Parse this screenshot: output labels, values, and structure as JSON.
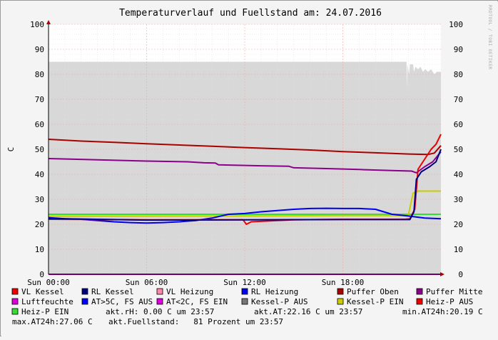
{
  "chart_data": {
    "type": "line",
    "title": "Temperaturverlauf und Fuellstand am: 24.07.2016",
    "ylabel": "C",
    "watermark": "RRDTOOL / TOBI OETIKER",
    "xlim": [
      0,
      24
    ],
    "ylim": [
      0,
      100
    ],
    "x_ticks": [
      {
        "x": 0,
        "label": "Sun 00:00"
      },
      {
        "x": 6,
        "label": "Sun 06:00"
      },
      {
        "x": 12,
        "label": "Sun 12:00"
      },
      {
        "x": 18,
        "label": "Sun 18:00"
      }
    ],
    "y_ticks": [
      0,
      10,
      20,
      30,
      40,
      50,
      60,
      70,
      80,
      90,
      100
    ],
    "grid": true,
    "fill_area": {
      "name": "Fuellstand",
      "color": "#d8d8d8",
      "points": [
        [
          0,
          85
        ],
        [
          21.9,
          85
        ],
        [
          21.92,
          74
        ],
        [
          21.95,
          84
        ],
        [
          22.05,
          80
        ],
        [
          22.1,
          84
        ],
        [
          22.3,
          84
        ],
        [
          22.35,
          81
        ],
        [
          22.45,
          83
        ],
        [
          22.6,
          82
        ],
        [
          22.75,
          83
        ],
        [
          22.9,
          81
        ],
        [
          23.05,
          82
        ],
        [
          23.2,
          81
        ],
        [
          23.4,
          82
        ],
        [
          23.6,
          80
        ],
        [
          23.75,
          81
        ],
        [
          24,
          81
        ]
      ]
    },
    "series": [
      {
        "name": "Puffer Oben",
        "color": "#aa0000",
        "points": [
          [
            0,
            54
          ],
          [
            2,
            53.3
          ],
          [
            4,
            52.8
          ],
          [
            6,
            52.2
          ],
          [
            8,
            51.7
          ],
          [
            10,
            51.2
          ],
          [
            12,
            50.7
          ],
          [
            14,
            50.2
          ],
          [
            16,
            49.7
          ],
          [
            18,
            49.1
          ],
          [
            20,
            48.6
          ],
          [
            22,
            48.1
          ],
          [
            23.2,
            47.9
          ],
          [
            23.6,
            48.5
          ],
          [
            24,
            51.5
          ]
        ]
      },
      {
        "name": "Puffer Mitte",
        "color": "#8b008b",
        "points": [
          [
            0,
            46.3
          ],
          [
            3,
            45.8
          ],
          [
            6,
            45.3
          ],
          [
            8.5,
            45.0
          ],
          [
            9.5,
            44.6
          ],
          [
            10.2,
            44.5
          ],
          [
            10.4,
            43.8
          ],
          [
            13,
            43.4
          ],
          [
            14.7,
            43.2
          ],
          [
            15,
            42.6
          ],
          [
            17,
            42.3
          ],
          [
            19,
            41.9
          ],
          [
            21,
            41.5
          ],
          [
            22.2,
            41.3
          ],
          [
            22.5,
            40.6
          ],
          [
            23,
            43
          ],
          [
            23.5,
            45
          ],
          [
            24,
            49
          ]
        ]
      },
      {
        "name": "Heiz-P EIN",
        "color": "#33dd33",
        "points": [
          [
            0,
            24
          ],
          [
            6,
            24
          ],
          [
            12,
            24
          ],
          [
            18,
            24
          ],
          [
            22.3,
            24
          ],
          [
            24,
            24
          ]
        ]
      },
      {
        "name": "Kessel-P EIN",
        "color": "#cccc00",
        "points": [
          [
            0,
            23.2
          ],
          [
            12,
            23.3
          ],
          [
            18,
            23.5
          ],
          [
            22.0,
            23.5
          ],
          [
            22.3,
            32.5
          ],
          [
            22.6,
            33.3
          ],
          [
            24,
            33.3
          ]
        ]
      },
      {
        "name": "RL Heizung",
        "color": "#0000ee",
        "points": [
          [
            0,
            22.7
          ],
          [
            1,
            22.2
          ],
          [
            2,
            22
          ],
          [
            3,
            21.5
          ],
          [
            4,
            21
          ],
          [
            5,
            20.7
          ],
          [
            6,
            20.5
          ],
          [
            7,
            20.7
          ],
          [
            8,
            21
          ],
          [
            9,
            21.5
          ],
          [
            10,
            22.5
          ],
          [
            11,
            24
          ],
          [
            12,
            24.3
          ],
          [
            13,
            25
          ],
          [
            14,
            25.5
          ],
          [
            15,
            26
          ],
          [
            16,
            26.3
          ],
          [
            17,
            26.4
          ],
          [
            18,
            26.3
          ],
          [
            19,
            26.3
          ],
          [
            20,
            26
          ],
          [
            20.5,
            25
          ],
          [
            21,
            24
          ],
          [
            22,
            23.3
          ],
          [
            23,
            22.5
          ],
          [
            24,
            22.2
          ]
        ]
      },
      {
        "name": "VL Kessel",
        "color": "#ee0000",
        "points": [
          [
            0,
            22
          ],
          [
            6,
            21.8
          ],
          [
            11.9,
            21.8
          ],
          [
            12.1,
            20
          ],
          [
            12.4,
            21
          ],
          [
            15,
            21.8
          ],
          [
            18,
            22
          ],
          [
            21.8,
            22
          ],
          [
            22.1,
            22.2
          ],
          [
            22.4,
            26
          ],
          [
            22.6,
            42
          ],
          [
            23,
            46
          ],
          [
            23.4,
            50
          ],
          [
            23.7,
            52
          ],
          [
            24,
            56
          ]
        ]
      },
      {
        "name": "RL Kessel",
        "color": "#000080",
        "points": [
          [
            0,
            22.3
          ],
          [
            6,
            21.7
          ],
          [
            12,
            21.8
          ],
          [
            18,
            21.9
          ],
          [
            22.1,
            21.9
          ],
          [
            22.35,
            25
          ],
          [
            22.5,
            38
          ],
          [
            22.8,
            41
          ],
          [
            23.3,
            43
          ],
          [
            23.7,
            45
          ],
          [
            24,
            50
          ]
        ]
      },
      {
        "name": "Luftfeuchte",
        "color": "#dd00dd",
        "points": [
          [
            0,
            0
          ],
          [
            24,
            0
          ]
        ]
      }
    ],
    "legend": [
      {
        "label": "VL Kessel",
        "color": "#ee0000"
      },
      {
        "label": "RL Kessel",
        "color": "#000080"
      },
      {
        "label": "VL Heizung",
        "color": "#ff88aa"
      },
      {
        "label": "RL Heizung",
        "color": "#0000ee"
      },
      {
        "label": "Puffer Oben",
        "color": "#aa0000"
      },
      {
        "label": "Puffer Mitte",
        "color": "#8b008b"
      },
      {
        "label": "Luftfeuchte",
        "color": "#dd00dd"
      },
      {
        "label": "AT>5C, FS AUS",
        "color": "#0000ff"
      },
      {
        "label": "AT<2C, FS EIN",
        "color": "#dd00dd"
      },
      {
        "label": "Kessel-P AUS",
        "color": "#777777"
      },
      {
        "label": "Kessel-P EIN",
        "color": "#cccc00"
      },
      {
        "label": "Heiz-P AUS",
        "color": "#ee0000"
      },
      {
        "label": "Heiz-P EIN",
        "color": "#33dd33"
      }
    ],
    "stats": [
      "akt.rH: 0.00 C um 23:57",
      "akt.AT:22.16 C um 23:57",
      "min.AT24h:20.19 C",
      "max.AT24h:27.06 C",
      "akt.Fuellstand:   81 Prozent um 23:57"
    ]
  }
}
